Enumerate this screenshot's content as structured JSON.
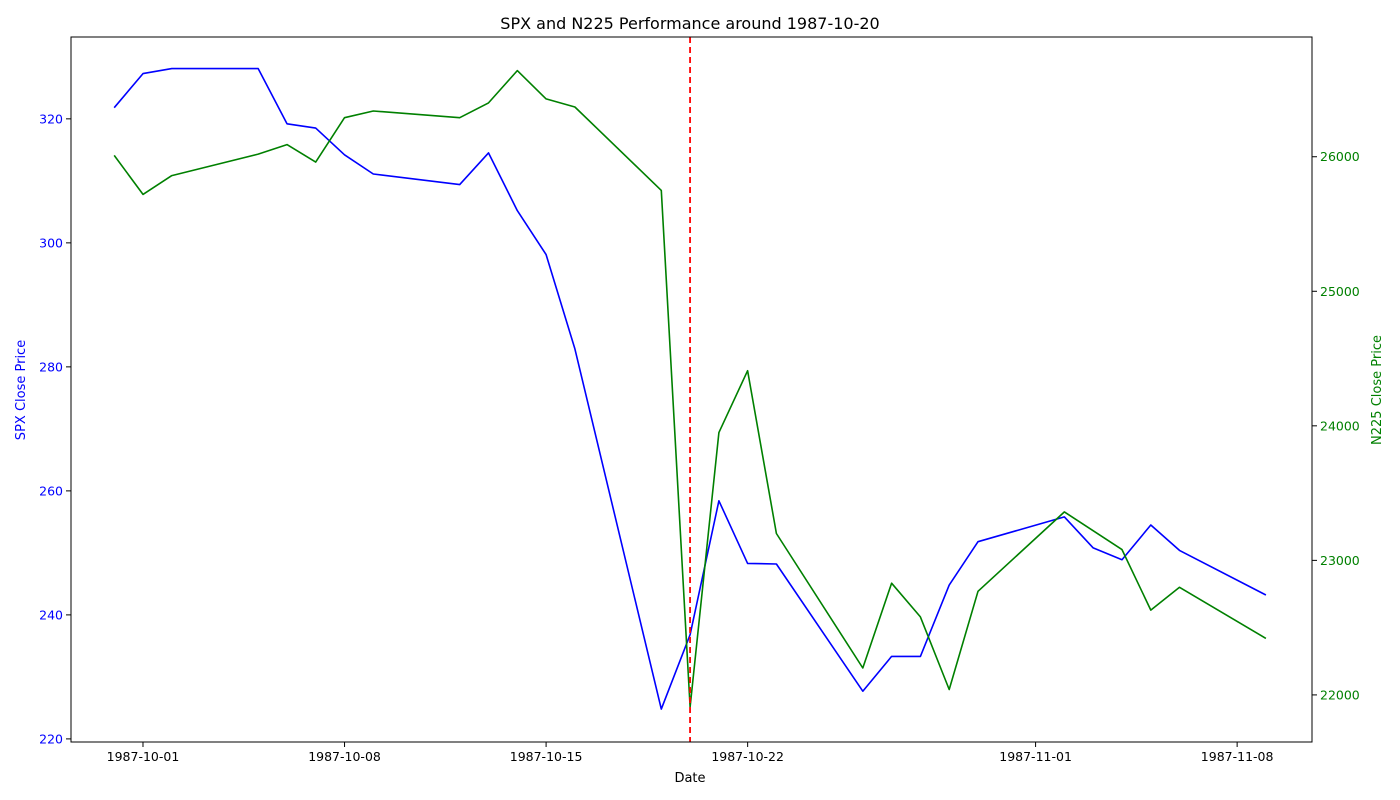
{
  "chart_data": {
    "type": "line",
    "title": "SPX and N225 Performance around 1987-10-20",
    "xlabel": "Date",
    "x_ticks": [
      "1987-10-01",
      "1987-10-08",
      "1987-10-15",
      "1987-10-22",
      "1987-11-01",
      "1987-11-08"
    ],
    "xlim": [
      "1987-09-28",
      "1987-11-11"
    ],
    "event_line": {
      "date": "1987-10-20",
      "color": "#ff0000",
      "style": "dashed"
    },
    "grid": false,
    "legend": "none",
    "y_left": {
      "label": "SPX Close Price",
      "color": "#0000ff",
      "ylim": [
        219.5,
        333.2
      ],
      "ticks": [
        220,
        240,
        260,
        280,
        300,
        320
      ]
    },
    "y_right": {
      "label": "N225 Close Price",
      "color": "#008000",
      "ylim": [
        21650,
        26890
      ],
      "ticks": [
        22000,
        23000,
        24000,
        25000,
        26000
      ]
    },
    "series": [
      {
        "axis": "left",
        "color": "#0000ff",
        "points": [
          [
            "1987-09-30",
            321.8
          ],
          [
            "1987-10-01",
            327.3
          ],
          [
            "1987-10-02",
            328.1
          ],
          [
            "1987-10-05",
            328.1
          ],
          [
            "1987-10-06",
            319.2
          ],
          [
            "1987-10-07",
            318.5
          ],
          [
            "1987-10-08",
            314.2
          ],
          [
            "1987-10-09",
            311.1
          ],
          [
            "1987-10-12",
            309.4
          ],
          [
            "1987-10-13",
            314.5
          ],
          [
            "1987-10-14",
            305.2
          ],
          [
            "1987-10-15",
            298.1
          ],
          [
            "1987-10-16",
            282.9
          ],
          [
            "1987-10-19",
            224.8
          ],
          [
            "1987-10-20",
            236.8
          ],
          [
            "1987-10-21",
            258.4
          ],
          [
            "1987-10-22",
            248.3
          ],
          [
            "1987-10-23",
            248.2
          ],
          [
            "1987-10-26",
            227.7
          ],
          [
            "1987-10-27",
            233.3
          ],
          [
            "1987-10-28",
            233.3
          ],
          [
            "1987-10-29",
            244.8
          ],
          [
            "1987-10-30",
            251.8
          ],
          [
            "1987-11-02",
            255.8
          ],
          [
            "1987-11-03",
            250.8
          ],
          [
            "1987-11-04",
            248.9
          ],
          [
            "1987-11-05",
            254.5
          ],
          [
            "1987-11-06",
            250.4
          ],
          [
            "1987-11-09",
            243.2
          ]
        ]
      },
      {
        "axis": "right",
        "color": "#008000",
        "points": [
          [
            "1987-09-30",
            26010
          ],
          [
            "1987-10-01",
            25720
          ],
          [
            "1987-10-02",
            25860
          ],
          [
            "1987-10-05",
            26020
          ],
          [
            "1987-10-06",
            26090
          ],
          [
            "1987-10-07",
            25960
          ],
          [
            "1987-10-08",
            26290
          ],
          [
            "1987-10-09",
            26340
          ],
          [
            "1987-10-12",
            26290
          ],
          [
            "1987-10-13",
            26400
          ],
          [
            "1987-10-14",
            26640
          ],
          [
            "1987-10-15",
            26430
          ],
          [
            "1987-10-16",
            26370
          ],
          [
            "1987-10-19",
            25750
          ],
          [
            "1987-10-20",
            21910
          ],
          [
            "1987-10-21",
            23950
          ],
          [
            "1987-10-22",
            24410
          ],
          [
            "1987-10-23",
            23200
          ],
          [
            "1987-10-26",
            22200
          ],
          [
            "1987-10-27",
            22830
          ],
          [
            "1987-10-28",
            22580
          ],
          [
            "1987-10-29",
            22040
          ],
          [
            "1987-10-30",
            22770
          ],
          [
            "1987-11-02",
            23360
          ],
          [
            "1987-11-04",
            23080
          ],
          [
            "1987-11-05",
            22630
          ],
          [
            "1987-11-06",
            22800
          ],
          [
            "1987-11-09",
            22420
          ]
        ]
      }
    ]
  }
}
